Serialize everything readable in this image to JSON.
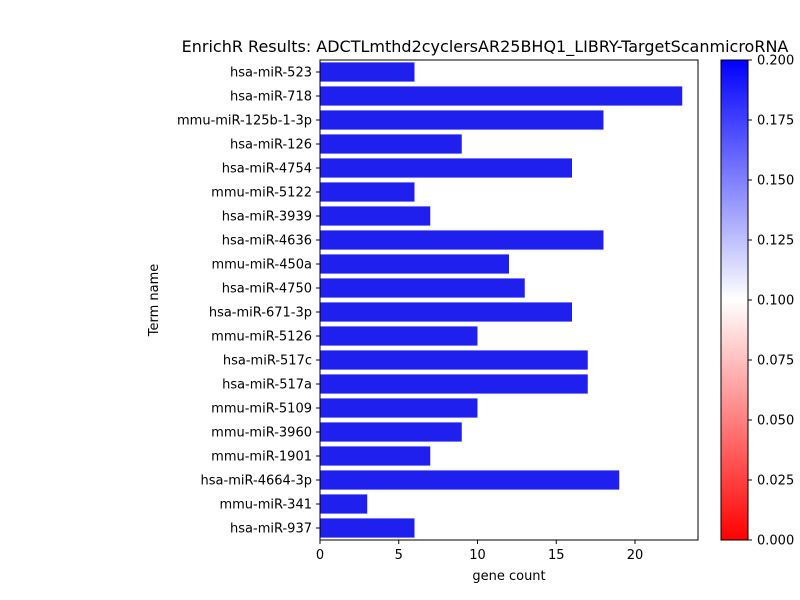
{
  "chart_data": {
    "type": "bar",
    "orientation": "horizontal",
    "title": "EnrichR Results: ADCTLmthd2cyclersAR25BHQ1_LIBRY-TargetScanmicroRNA",
    "xlabel": "gene count",
    "ylabel": "Term name",
    "xlim": [
      0,
      24
    ],
    "xticks": [
      0,
      5,
      10,
      15,
      20
    ],
    "grid": false,
    "bar_color": "#1f1fee",
    "categories": [
      "hsa-miR-523",
      "hsa-miR-718",
      "mmu-miR-125b-1-3p",
      "hsa-miR-126",
      "hsa-miR-4754",
      "mmu-miR-5122",
      "hsa-miR-3939",
      "hsa-miR-4636",
      "mmu-miR-450a",
      "hsa-miR-4750",
      "hsa-miR-671-3p",
      "mmu-miR-5126",
      "hsa-miR-517c",
      "hsa-miR-517a",
      "mmu-miR-5109",
      "mmu-miR-3960",
      "mmu-miR-1901",
      "hsa-miR-4664-3p",
      "mmu-miR-341",
      "hsa-miR-937"
    ],
    "values": [
      6,
      23,
      18,
      9,
      16,
      6,
      7,
      18,
      12,
      13,
      16,
      10,
      17,
      17,
      10,
      9,
      7,
      19,
      3,
      6
    ],
    "colorbar": {
      "range": [
        0.0,
        0.2
      ],
      "ticks": [
        "0.000",
        "0.025",
        "0.050",
        "0.075",
        "0.100",
        "0.125",
        "0.150",
        "0.175",
        "0.200"
      ],
      "colormap": [
        "#ff0000",
        "#ffffff",
        "#0000ff"
      ],
      "placement": "right"
    }
  }
}
